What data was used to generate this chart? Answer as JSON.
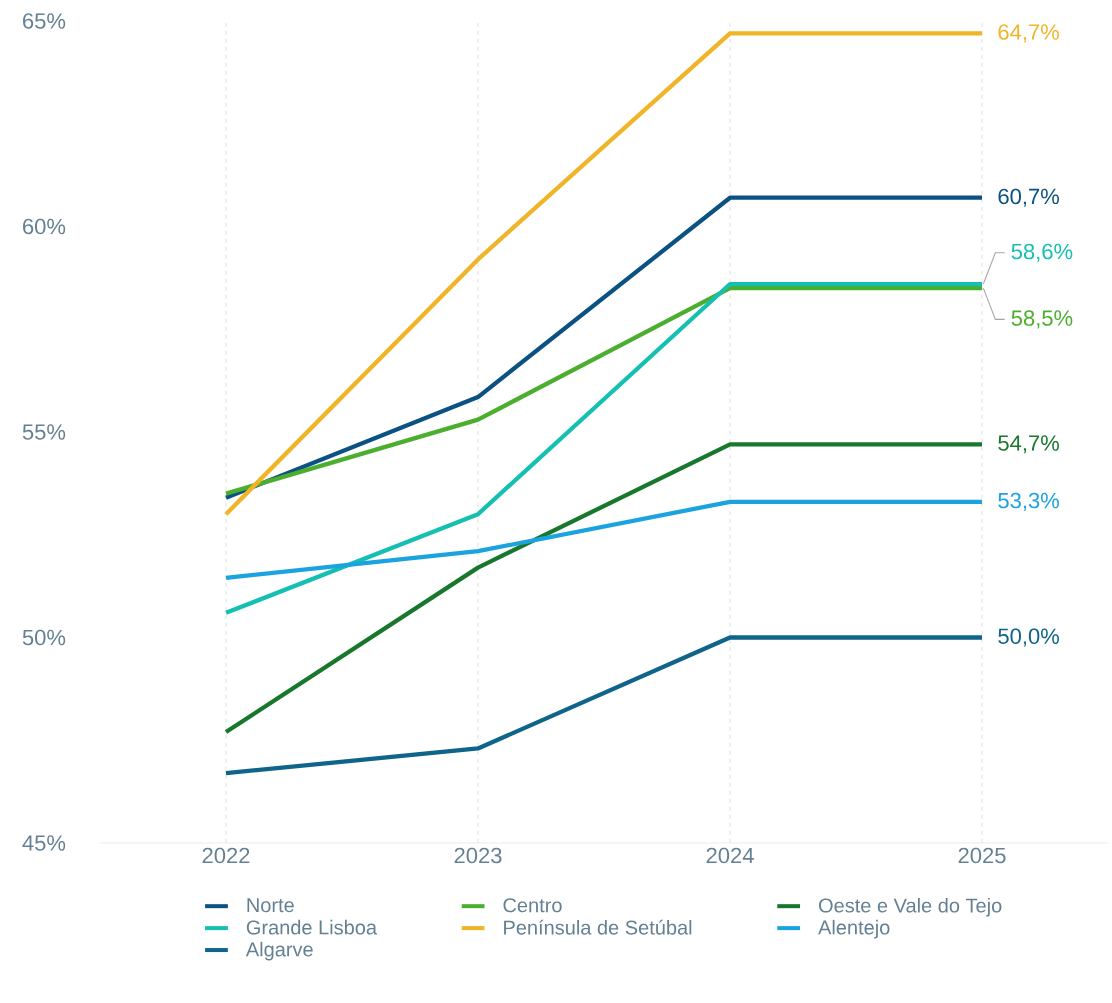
{
  "chart_data": {
    "type": "line",
    "categories": [
      "2022",
      "2023",
      "2024",
      "2025"
    ],
    "series": [
      {
        "name": "Norte",
        "color": "#0b5283",
        "values": [
          53.4,
          55.85,
          60.7,
          60.7
        ],
        "value_labels": [
          null,
          null,
          null,
          "60,7%"
        ]
      },
      {
        "name": "Centro",
        "color": "#4cae2f",
        "values": [
          53.5,
          55.3,
          58.5,
          58.5
        ],
        "value_labels": [
          null,
          null,
          null,
          "58,5%"
        ]
      },
      {
        "name": "Oeste e Vale do Tejo",
        "color": "#17772c",
        "values": [
          47.7,
          51.7,
          54.7,
          54.7
        ],
        "value_labels": [
          null,
          null,
          null,
          "54,7%"
        ]
      },
      {
        "name": "Grande Lisboa",
        "color": "#15c0b3",
        "values": [
          50.6,
          53.0,
          58.6,
          58.6
        ],
        "value_labels": [
          null,
          null,
          null,
          "58,6%"
        ]
      },
      {
        "name": "Península de Setúbal",
        "color": "#f0b428",
        "values": [
          53.0,
          59.2,
          64.7,
          64.7
        ],
        "value_labels": [
          null,
          null,
          null,
          "64,7%"
        ]
      },
      {
        "name": "Alentejo",
        "color": "#1ba3e0",
        "values": [
          51.45,
          52.1,
          53.3,
          53.3
        ],
        "value_labels": [
          null,
          null,
          null,
          "53,3%"
        ]
      },
      {
        "name": "Algarve",
        "color": "#0e6489",
        "values": [
          46.7,
          47.3,
          50.0,
          50.0
        ],
        "value_labels": [
          null,
          null,
          null,
          "50,0%"
        ]
      }
    ],
    "ylim": [
      45,
      65
    ],
    "yticks": [
      {
        "value": 45,
        "label": "45%"
      },
      {
        "value": 50,
        "label": "50%"
      },
      {
        "value": 55,
        "label": "55%"
      },
      {
        "value": 60,
        "label": "60%"
      },
      {
        "value": 65,
        "label": "65%"
      }
    ],
    "grid": "x",
    "legend": "bottom",
    "marker": "none",
    "line_style": "solid"
  }
}
